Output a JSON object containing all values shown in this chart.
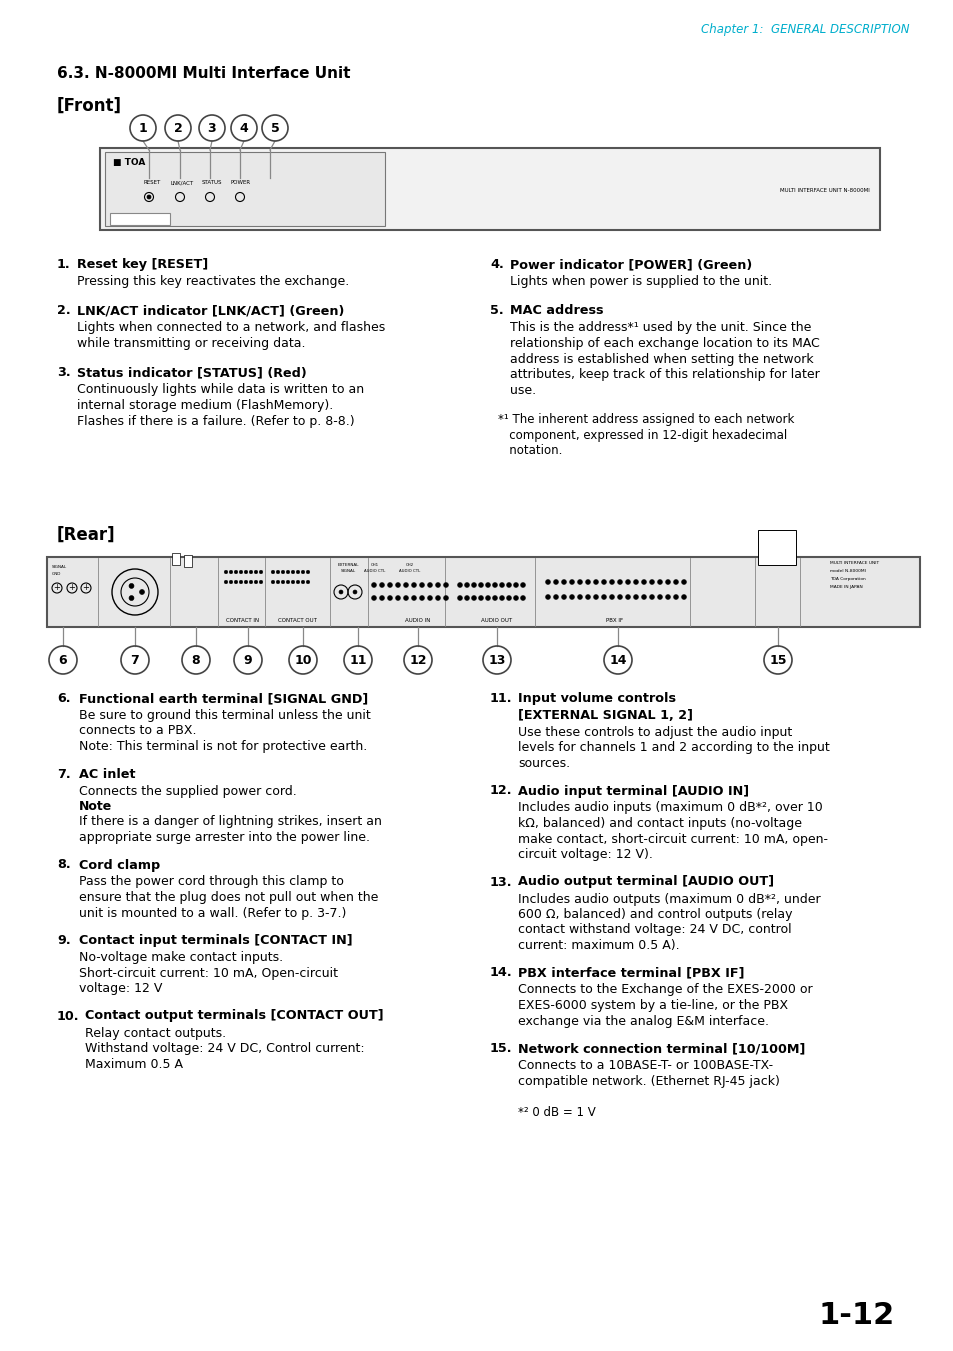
{
  "page_header": "Chapter 1:  GENERAL DESCRIPTION",
  "page_header_color": "#00AECC",
  "section_title": "6.3. N-8000MI Multi Interface Unit",
  "front_label": "[Front]",
  "rear_label": "[Rear]",
  "front_numbers": [
    "1",
    "2",
    "3",
    "4",
    "5"
  ],
  "rear_numbers": [
    "6",
    "7",
    "8",
    "9",
    "10",
    "11",
    "12",
    "13",
    "14",
    "15"
  ],
  "page_number": "1-12",
  "bg_color": "#ffffff",
  "text_color": "#000000",
  "header_color": "#00AECC",
  "link_color": "#0070C0",
  "body_text": [
    {
      "num": "1",
      "title": "Reset key [RESET]",
      "text": "Pressing this key reactivates the exchange.",
      "note": ""
    },
    {
      "num": "2",
      "title": "LNK/ACT indicator [LNK/ACT] (Green)",
      "text": "Lights when connected to a network, and flashes\nwhile transmitting or receiving data.",
      "note": ""
    },
    {
      "num": "3",
      "title": "Status indicator [STATUS] (Red)",
      "text": "Continuously lights while data is written to an\ninternal storage medium (FlashMemory).\nFlashes if there is a failure. (Refer to p. 8-8.)",
      "note": ""
    },
    {
      "num": "4",
      "title": "Power indicator [POWER] (Green)",
      "text": "Lights when power is supplied to the unit.",
      "note": ""
    },
    {
      "num": "5",
      "title": "MAC address",
      "text": "This is the address*¹ used by the unit. Since the\nrelationship of each exchange location to its MAC\naddress is established when setting the network\nattributes, keep track of this relationship for later\nuse.",
      "note": ""
    },
    {
      "num": "6",
      "title": "Functional earth terminal [SIGNAL GND]",
      "text": "Be sure to ground this terminal unless the unit\nconnects to a PBX.\nNote: This terminal is not for protective earth.",
      "note": ""
    },
    {
      "num": "7",
      "title": "AC inlet",
      "text": "Connects the supplied power cord.",
      "note": "Note\nIf there is a danger of lightning strikes, insert an\nappropriate surge arrester into the power line."
    },
    {
      "num": "8",
      "title": "Cord clamp",
      "text": "Pass the power cord through this clamp to\nensure that the plug does not pull out when the\nunit is mounted to a wall. (Refer to p. 3-7.)",
      "note": ""
    },
    {
      "num": "9",
      "title": "Contact input terminals [CONTACT IN]",
      "text": "No-voltage make contact inputs.\nShort-circuit current: 10 mA, Open-circuit\nvoltage: 12 V",
      "note": ""
    },
    {
      "num": "10",
      "title": "Contact output terminals [CONTACT OUT]",
      "text": "Relay contact outputs.\nWithstand voltage: 24 V DC, Control current:\nMaximum 0.5 A",
      "note": ""
    },
    {
      "num": "11",
      "title": "Input volume controls\n[EXTERNAL SIGNAL 1, 2]",
      "text": "Use these controls to adjust the audio input\nlevels for channels 1 and 2 according to the input\nsources.",
      "note": ""
    },
    {
      "num": "12",
      "title": "Audio input terminal [AUDIO IN]",
      "text": "Includes audio inputs (maximum 0 dB*², over 10\nkΩ, balanced) and contact inputs (no-voltage\nmake contact, short-circuit current: 10 mA, open-\ncircuit voltage: 12 V).",
      "note": ""
    },
    {
      "num": "13",
      "title": "Audio output terminal [AUDIO OUT]",
      "text": "Includes audio outputs (maximum 0 dB*², under\n600 Ω, balanced) and control outputs (relay\ncontact withstand voltage: 24 V DC, control\ncurrent: maximum 0.5 A).",
      "note": ""
    },
    {
      "num": "14",
      "title": "PBX interface terminal [PBX IF]",
      "text": "Connects to the Exchange of the EXES-2000 or\nEXES-6000 system by a tie-line, or the PBX\nexchange via the analog E&M interface.",
      "note": ""
    },
    {
      "num": "15",
      "title": "Network connection terminal [10/100M]",
      "text": "Connects to a 10BASE-T- or 100BASE-TX-\ncompatible network. (Ethernet RJ-45 jack)",
      "note": ""
    }
  ],
  "footnote1_lines": [
    "*¹ The inherent address assigned to each network",
    "   component, expressed in 12-digit hexadecimal",
    "   notation."
  ],
  "footnote2": "*² 0 dB = 1 V"
}
